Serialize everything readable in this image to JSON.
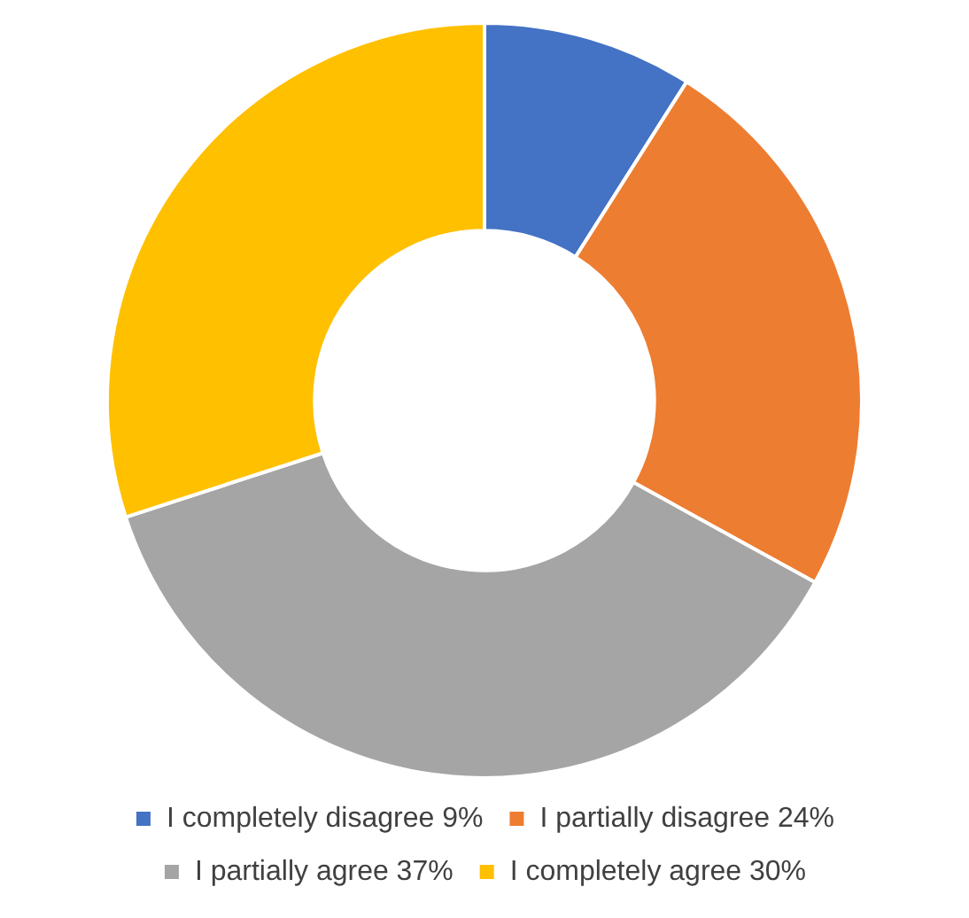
{
  "chart_data": {
    "type": "donut",
    "categories": [
      "I completely disagree 9%",
      "I partially disagree 24%",
      "I partially agree 37%",
      "I completely agree 30%"
    ],
    "values": [
      9,
      24,
      37,
      30
    ],
    "colors": [
      "#4472c4",
      "#ed7d31",
      "#a5a5a5",
      "#ffc000"
    ],
    "legend": "bottom"
  }
}
